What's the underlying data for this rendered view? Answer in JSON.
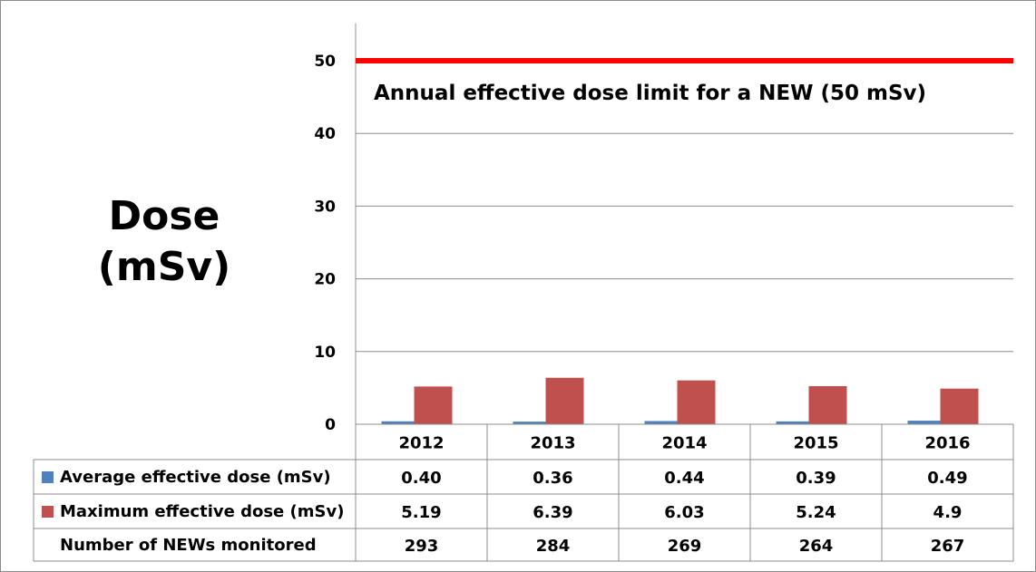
{
  "chart_data": {
    "type": "bar",
    "ylabel": "Dose\n(mSv)",
    "ylim": [
      0,
      55
    ],
    "yticks": [
      0,
      10,
      20,
      30,
      40,
      50
    ],
    "grid": true,
    "categories": [
      "2012",
      "2013",
      "2014",
      "2015",
      "2016"
    ],
    "series": [
      {
        "name": "Average effective dose (mSv)",
        "color": "#4f81bd",
        "values": [
          0.4,
          0.36,
          0.44,
          0.39,
          0.49
        ],
        "labels": [
          "0.40",
          "0.36",
          "0.44",
          "0.39",
          "0.49"
        ]
      },
      {
        "name": "Maximum effective dose (mSv)",
        "color": "#c0504d",
        "values": [
          5.19,
          6.39,
          6.03,
          5.24,
          4.9
        ],
        "labels": [
          "5.19",
          "6.39",
          "6.03",
          "5.24",
          "4.9"
        ]
      }
    ],
    "extra_rows": [
      {
        "name": "Number of NEWs monitored",
        "values": [
          "293",
          "284",
          "269",
          "264",
          "267"
        ]
      }
    ],
    "reference_line": {
      "value": 50,
      "color": "#ff0000",
      "label": "Annual effective dose limit for a NEW (50 mSv)"
    },
    "legend": "data-table"
  }
}
